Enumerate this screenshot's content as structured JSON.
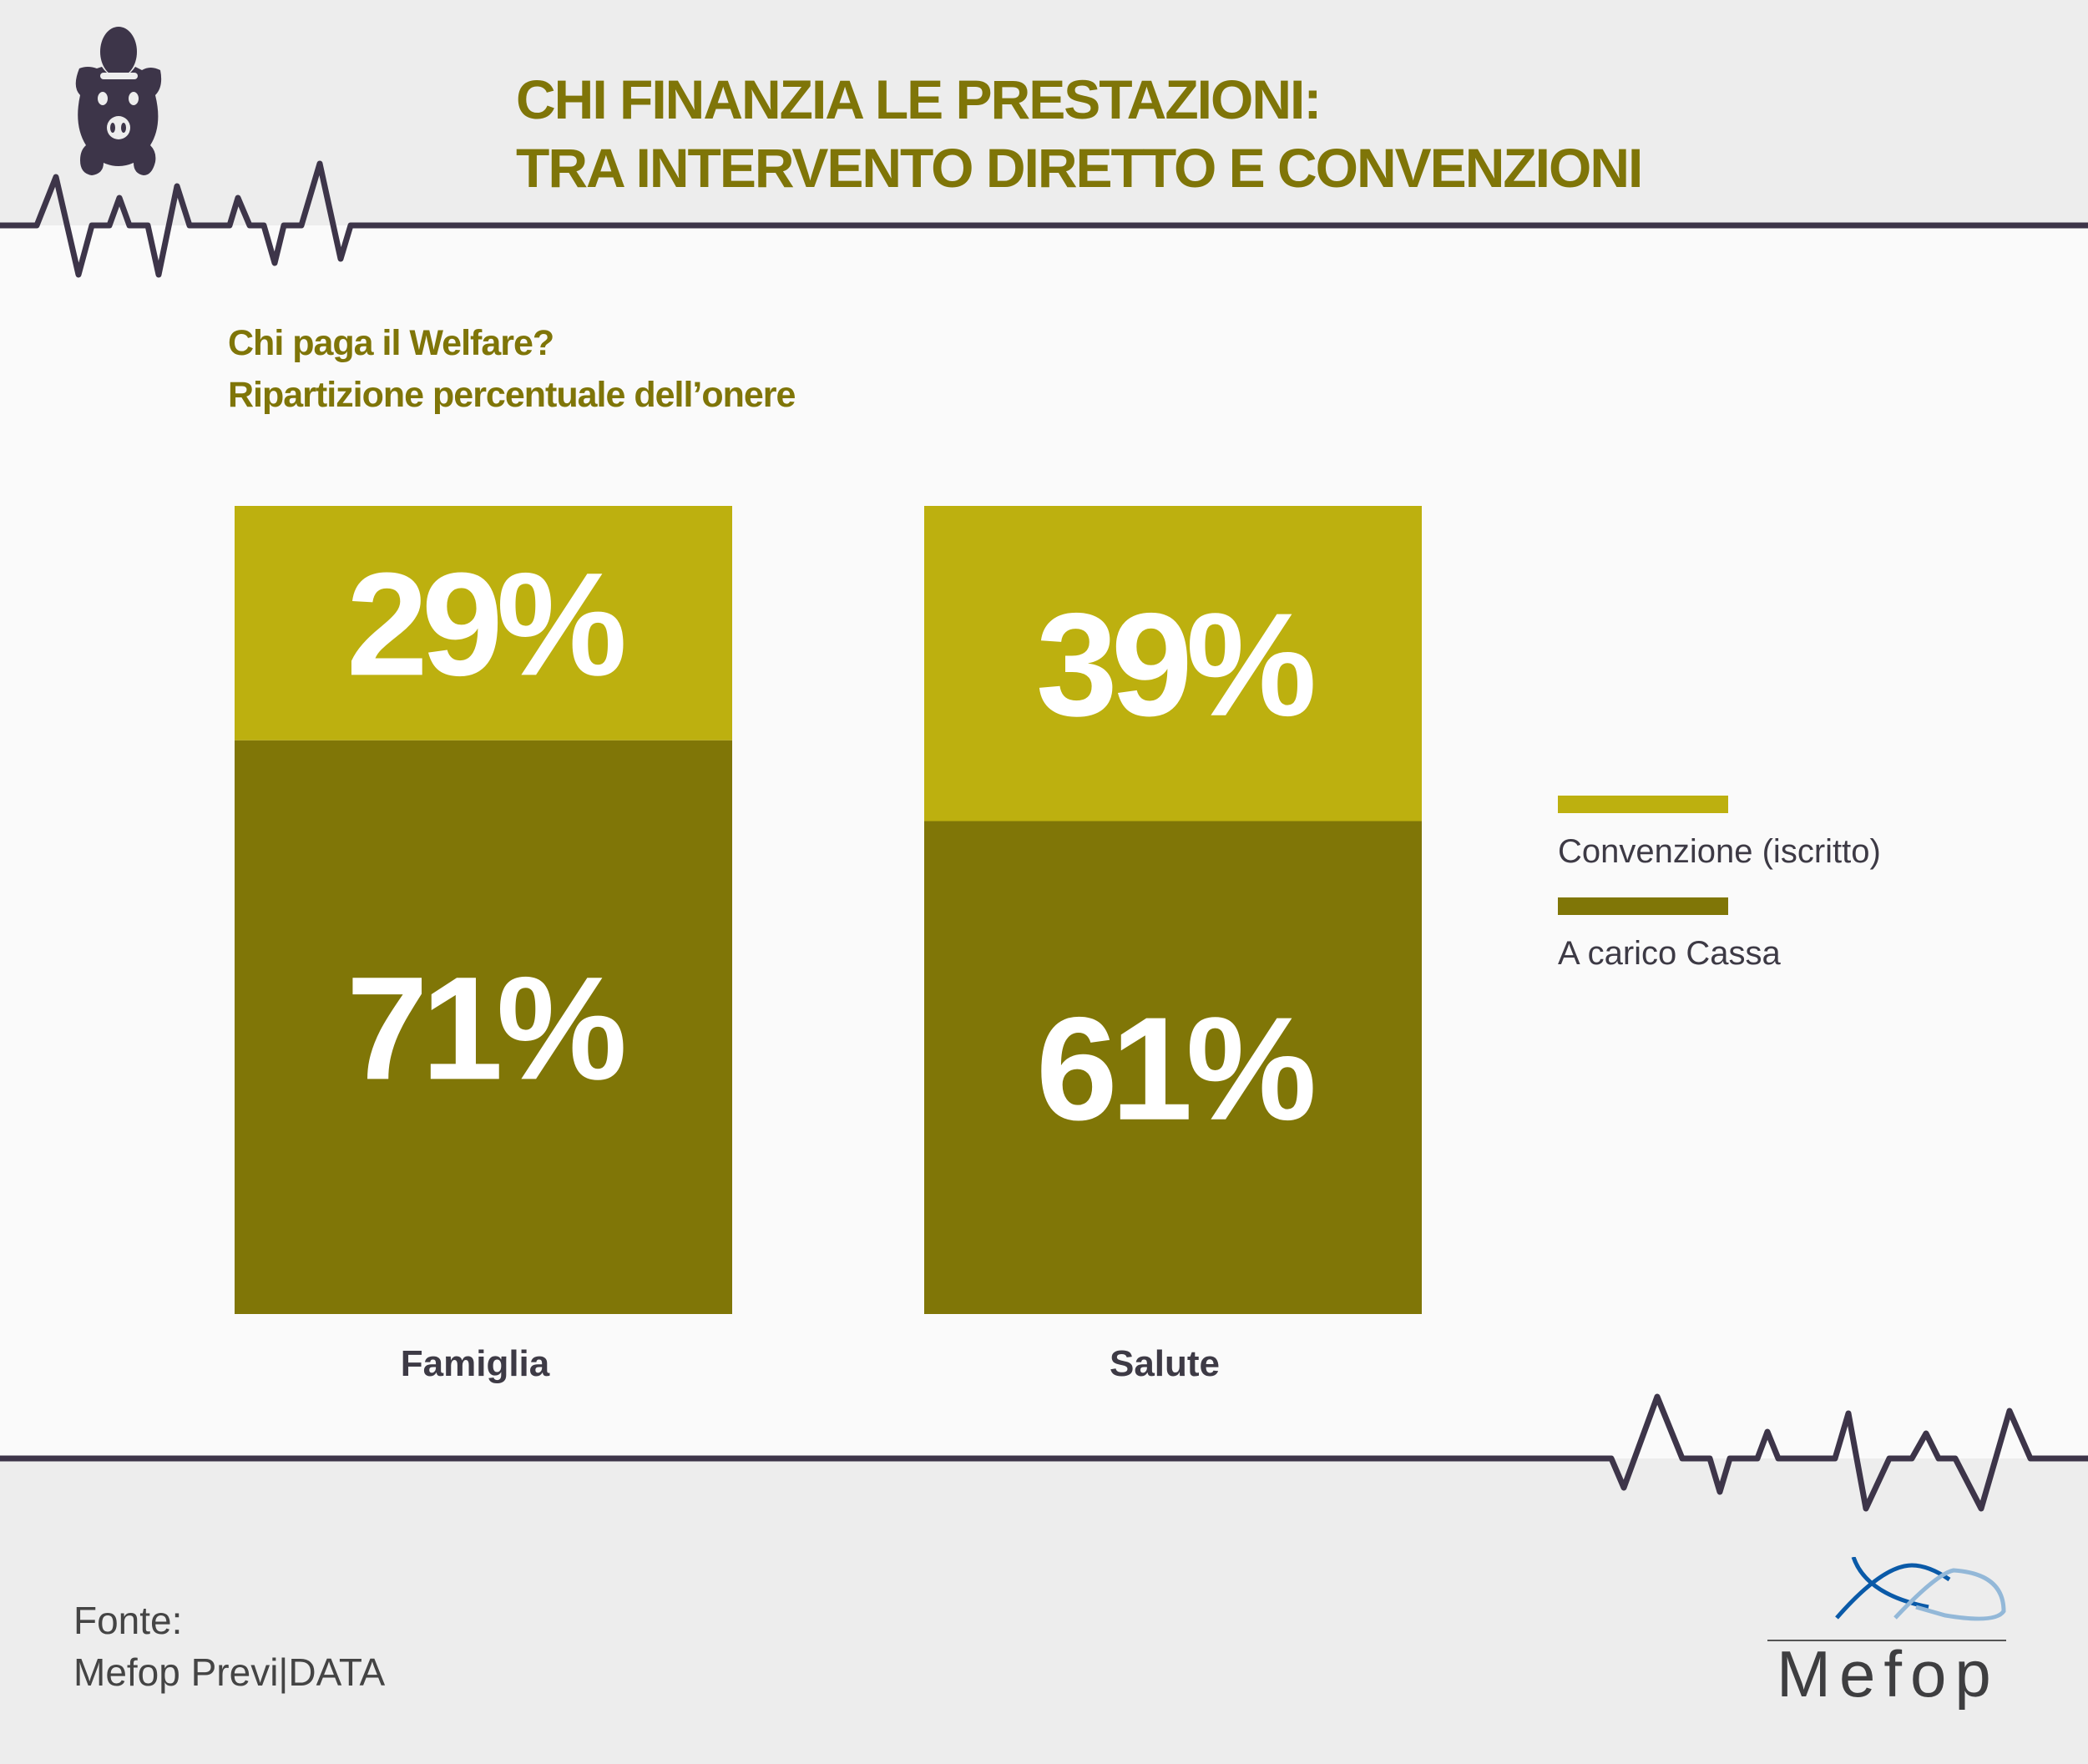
{
  "header": {
    "title_line1": "CHI FINANZIA LE PRESTAZIONI:",
    "title_line2": "TRA INTERVENTO DIRETTO E CONVENZIONI",
    "icon": "piggy-bank-icon"
  },
  "subtitle": {
    "line1": "Chi paga il Welfare?",
    "line2": "Ripartizione percentuale dell’onere"
  },
  "chart_data": {
    "type": "bar",
    "stacked": true,
    "title": "Chi paga il Welfare? Ripartizione percentuale dell’onere",
    "categories": [
      "Famiglia",
      "Salute"
    ],
    "series": [
      {
        "name": "A carico Cassa",
        "values": [
          71,
          61
        ],
        "labels": [
          "71%",
          "61%"
        ],
        "color": "#807607"
      },
      {
        "name": "Convenzione (iscritto)",
        "values": [
          29,
          39
        ],
        "labels": [
          "29%",
          "39%"
        ],
        "color": "#bdb00f"
      }
    ],
    "ylim": [
      0,
      100
    ],
    "legend_position": "right",
    "grid": false
  },
  "legend": [
    {
      "label": "Convenzione (iscritto)",
      "color": "#bdb00f"
    },
    {
      "label": "A carico Cassa",
      "color": "#807607"
    }
  ],
  "source": {
    "line1": "Fonte:",
    "line2": "Mefop Previ|DATA"
  },
  "logo": {
    "text": "Mefop"
  }
}
